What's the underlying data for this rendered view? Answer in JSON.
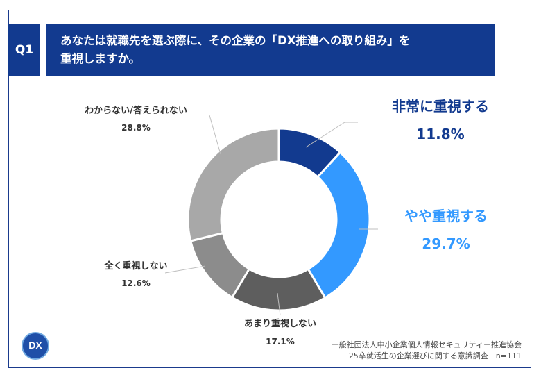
{
  "question": {
    "badge": "Q1",
    "line1": "あなたは就職先を選ぶ際に、その企業の「DX推進への取り組み」を",
    "line2": "重視しますか。"
  },
  "chart_data": {
    "type": "pie",
    "categories": [
      "非常に重視する",
      "やや重視する",
      "あまり重視しない",
      "全く重視しない",
      "わからない/答えられない"
    ],
    "values": [
      11.8,
      29.7,
      17.1,
      12.6,
      28.8
    ],
    "value_labels": [
      "11.8%",
      "29.7%",
      "17.1%",
      "12.6%",
      "28.8%"
    ],
    "colors": [
      "#123a8f",
      "#3399ff",
      "#5e5e5e",
      "#8c8c8c",
      "#a8a8a8"
    ],
    "donut": true
  },
  "footer": {
    "line1": "一般社団法人中小企業個人情報セキュリティー推進協会",
    "line2": "25卒就活生の企業選びに関する意識調査｜n=111"
  },
  "logo": {
    "text": "DX",
    "colors": {
      "bg": "#1f4fa8",
      "ring": "#6fa8e0"
    }
  }
}
